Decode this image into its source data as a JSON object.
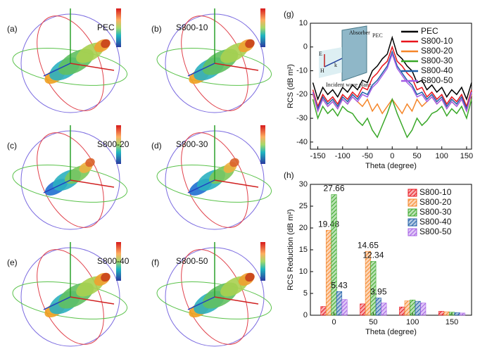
{
  "panels": [
    {
      "letter": "(a)",
      "label": "PEC"
    },
    {
      "letter": "(b)",
      "label": "S800-10"
    },
    {
      "letter": "(c)",
      "label": "S800-20"
    },
    {
      "letter": "(d)",
      "label": "S800-30"
    },
    {
      "letter": "(e)",
      "label": "S800-40"
    },
    {
      "letter": "(f)",
      "label": "S800-50"
    }
  ],
  "chart_data": [
    {
      "type": "line",
      "panel": "(g)",
      "x_label": "Theta (degree)",
      "y_label": "RCS (dB m²)",
      "annotations": [
        "Absorber",
        "PEC",
        "Incident wave plane",
        "E",
        "H",
        "k"
      ],
      "x": [
        -160,
        -150,
        -140,
        -130,
        -120,
        -110,
        -100,
        -90,
        -80,
        -70,
        -60,
        -50,
        -40,
        -30,
        -20,
        -10,
        0,
        10,
        20,
        30,
        40,
        50,
        60,
        70,
        80,
        90,
        100,
        110,
        120,
        130,
        140,
        150,
        160
      ],
      "series": [
        {
          "name": "PEC",
          "color": "#000000",
          "values": [
            -15,
            -22,
            -17,
            -20,
            -18,
            -21,
            -17,
            -19,
            -16,
            -18,
            -14,
            -15,
            -10,
            -8,
            -5,
            -3,
            4,
            -3,
            -5,
            -8,
            -10,
            -15,
            -14,
            -18,
            -16,
            -19,
            -17,
            -21,
            -18,
            -20,
            -17,
            -22,
            -15
          ]
        },
        {
          "name": "S800-10",
          "color": "#e8141c",
          "values": [
            -18,
            -25,
            -20,
            -23,
            -21,
            -24,
            -20,
            -22,
            -19,
            -21,
            -17,
            -18,
            -13,
            -11,
            -8,
            -6,
            0,
            -6,
            -8,
            -11,
            -13,
            -18,
            -17,
            -21,
            -19,
            -22,
            -20,
            -24,
            -21,
            -23,
            -20,
            -25,
            -18
          ]
        },
        {
          "name": "S800-20",
          "color": "#f5862a",
          "values": [
            -20,
            -27,
            -22,
            -25,
            -23,
            -26,
            -22,
            -24,
            -21,
            -23,
            -25,
            -22,
            -27,
            -24,
            -28,
            -25,
            -22,
            -25,
            -28,
            -24,
            -27,
            -22,
            -25,
            -23,
            -21,
            -24,
            -22,
            -26,
            -23,
            -25,
            -22,
            -27,
            -20
          ]
        },
        {
          "name": "S800-30",
          "color": "#3aa829",
          "values": [
            -22,
            -30,
            -25,
            -28,
            -26,
            -29,
            -25,
            -27,
            -28,
            -31,
            -33,
            -30,
            -35,
            -38,
            -33,
            -28,
            -22,
            -28,
            -33,
            -38,
            -35,
            -30,
            -33,
            -31,
            -28,
            -27,
            -25,
            -29,
            -26,
            -28,
            -25,
            -30,
            -22
          ]
        },
        {
          "name": "S800-40",
          "color": "#1f5fa8",
          "values": [
            -19,
            -26,
            -21,
            -24,
            -22,
            -25,
            -21,
            -23,
            -20,
            -22,
            -19,
            -20,
            -16,
            -14,
            -11,
            -8,
            -2,
            -8,
            -11,
            -14,
            -16,
            -20,
            -19,
            -22,
            -20,
            -23,
            -21,
            -25,
            -22,
            -24,
            -21,
            -26,
            -19
          ]
        },
        {
          "name": "S800-50",
          "color": "#a45ee5",
          "values": [
            -19,
            -27,
            -22,
            -25,
            -23,
            -26,
            -22,
            -24,
            -21,
            -23,
            -20,
            -21,
            -17,
            -15,
            -12,
            -9,
            -3,
            -9,
            -12,
            -15,
            -17,
            -21,
            -20,
            -23,
            -21,
            -24,
            -22,
            -26,
            -23,
            -25,
            -22,
            -27,
            -19
          ]
        }
      ],
      "xlim": [
        -165,
        160
      ],
      "xticks": [
        -150,
        -100,
        -50,
        0,
        50,
        100,
        150
      ],
      "ylim": [
        -43,
        10
      ],
      "yticks": [
        -40,
        -30,
        -20,
        -10,
        0,
        10
      ],
      "grid": false,
      "legend": "upper right"
    },
    {
      "type": "bar",
      "panel": "(h)",
      "x_label": "Theta (degree)",
      "y_label": "RCS Reduction (dB m²)",
      "x": [
        0,
        50,
        100,
        150
      ],
      "series": [
        {
          "name": "S800-10",
          "color": "#e8141c",
          "values": [
            2,
            2.6,
            1.9,
            0.9
          ]
        },
        {
          "name": "S800-20",
          "color": "#f5862a",
          "values": [
            19.48,
            14.65,
            3.3,
            0.8
          ],
          "value_labels": [
            "19.48",
            "14.65",
            null,
            null
          ]
        },
        {
          "name": "S800-30",
          "color": "#3aa829",
          "values": [
            27.66,
            12.34,
            3.5,
            0.7
          ],
          "value_labels": [
            "27.66",
            "12.34",
            null,
            null
          ]
        },
        {
          "name": "S800-40",
          "color": "#1f5fa8",
          "values": [
            5.43,
            3.95,
            3.2,
            0.6
          ],
          "value_labels": [
            "5.43",
            "3.95",
            null,
            null
          ]
        },
        {
          "name": "S800-50",
          "color": "#a45ee5",
          "values": [
            3.6,
            2.8,
            2.8,
            0.5
          ]
        }
      ],
      "xlim": [
        -30,
        175
      ],
      "xticks": [
        0,
        50,
        100,
        150
      ],
      "ylim": [
        0,
        30
      ],
      "yticks": [
        0,
        5,
        10,
        15,
        20,
        25,
        30
      ],
      "grid": false,
      "legend": "upper right"
    }
  ]
}
